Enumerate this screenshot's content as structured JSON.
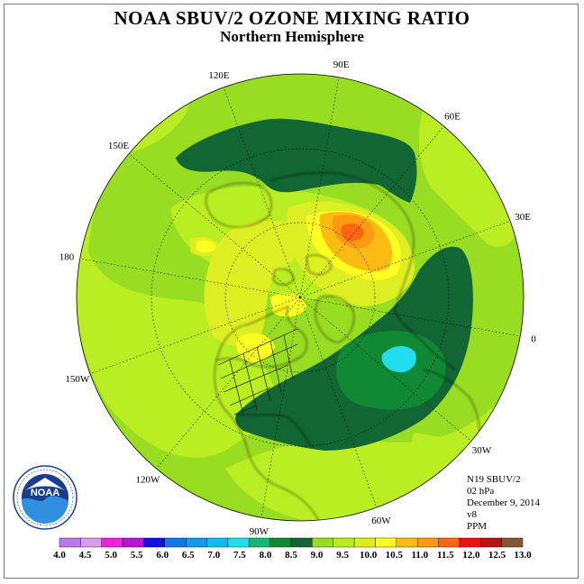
{
  "header": {
    "title": "NOAA SBUV/2 OZONE MIXING RATIO",
    "subtitle": "Northern Hemisphere"
  },
  "map": {
    "projection": "polar stereographic",
    "background_color": "#99dd22",
    "longitude_labels": [
      {
        "text": "90E",
        "angle": -80
      },
      {
        "text": "60E",
        "angle": -50
      },
      {
        "text": "30E",
        "angle": -20
      },
      {
        "text": "0",
        "angle": 10
      },
      {
        "text": "30W",
        "angle": 40
      },
      {
        "text": "60W",
        "angle": 70
      },
      {
        "text": "90W",
        "angle": 100
      },
      {
        "text": "120W",
        "angle": 130
      },
      {
        "text": "150W",
        "angle": 160
      },
      {
        "text": "180",
        "angle": 190
      },
      {
        "text": "150E",
        "angle": 220
      },
      {
        "text": "120E",
        "angle": 250
      }
    ]
  },
  "info": {
    "satellite": "N19 SBUV/2",
    "level": "02 hPa",
    "date": "December 9, 2014",
    "version": "v8",
    "units": "PPM"
  },
  "legend": {
    "colors": [
      "#bb77ee",
      "#dd99ee",
      "#ee22dd",
      "#bb11dd",
      "#1111dd",
      "#1177ee",
      "#1199ee",
      "#11bbee",
      "#22ddee",
      "#11bb77",
      "#118833",
      "#116633",
      "#99dd22",
      "#bbee22",
      "#ddee22",
      "#ffff22",
      "#ffbb11",
      "#ff9911",
      "#ff6611",
      "#ee1111",
      "#bb1111",
      "#885533"
    ],
    "ticks": [
      "4.0",
      "4.5",
      "5.0",
      "5.5",
      "6.0",
      "6.5",
      "7.0",
      "7.5",
      "8.0",
      "8.5",
      "9.0",
      "9.5",
      "10.0",
      "10.5",
      "11.0",
      "11.5",
      "12.0",
      "12.5",
      "13.0"
    ]
  },
  "logo": {
    "name": "NOAA",
    "ring_text": "NATIONAL OCEANIC AND ATMOSPHERIC ADMINISTRATION · U.S. DEPARTMENT OF COMMERCE"
  }
}
